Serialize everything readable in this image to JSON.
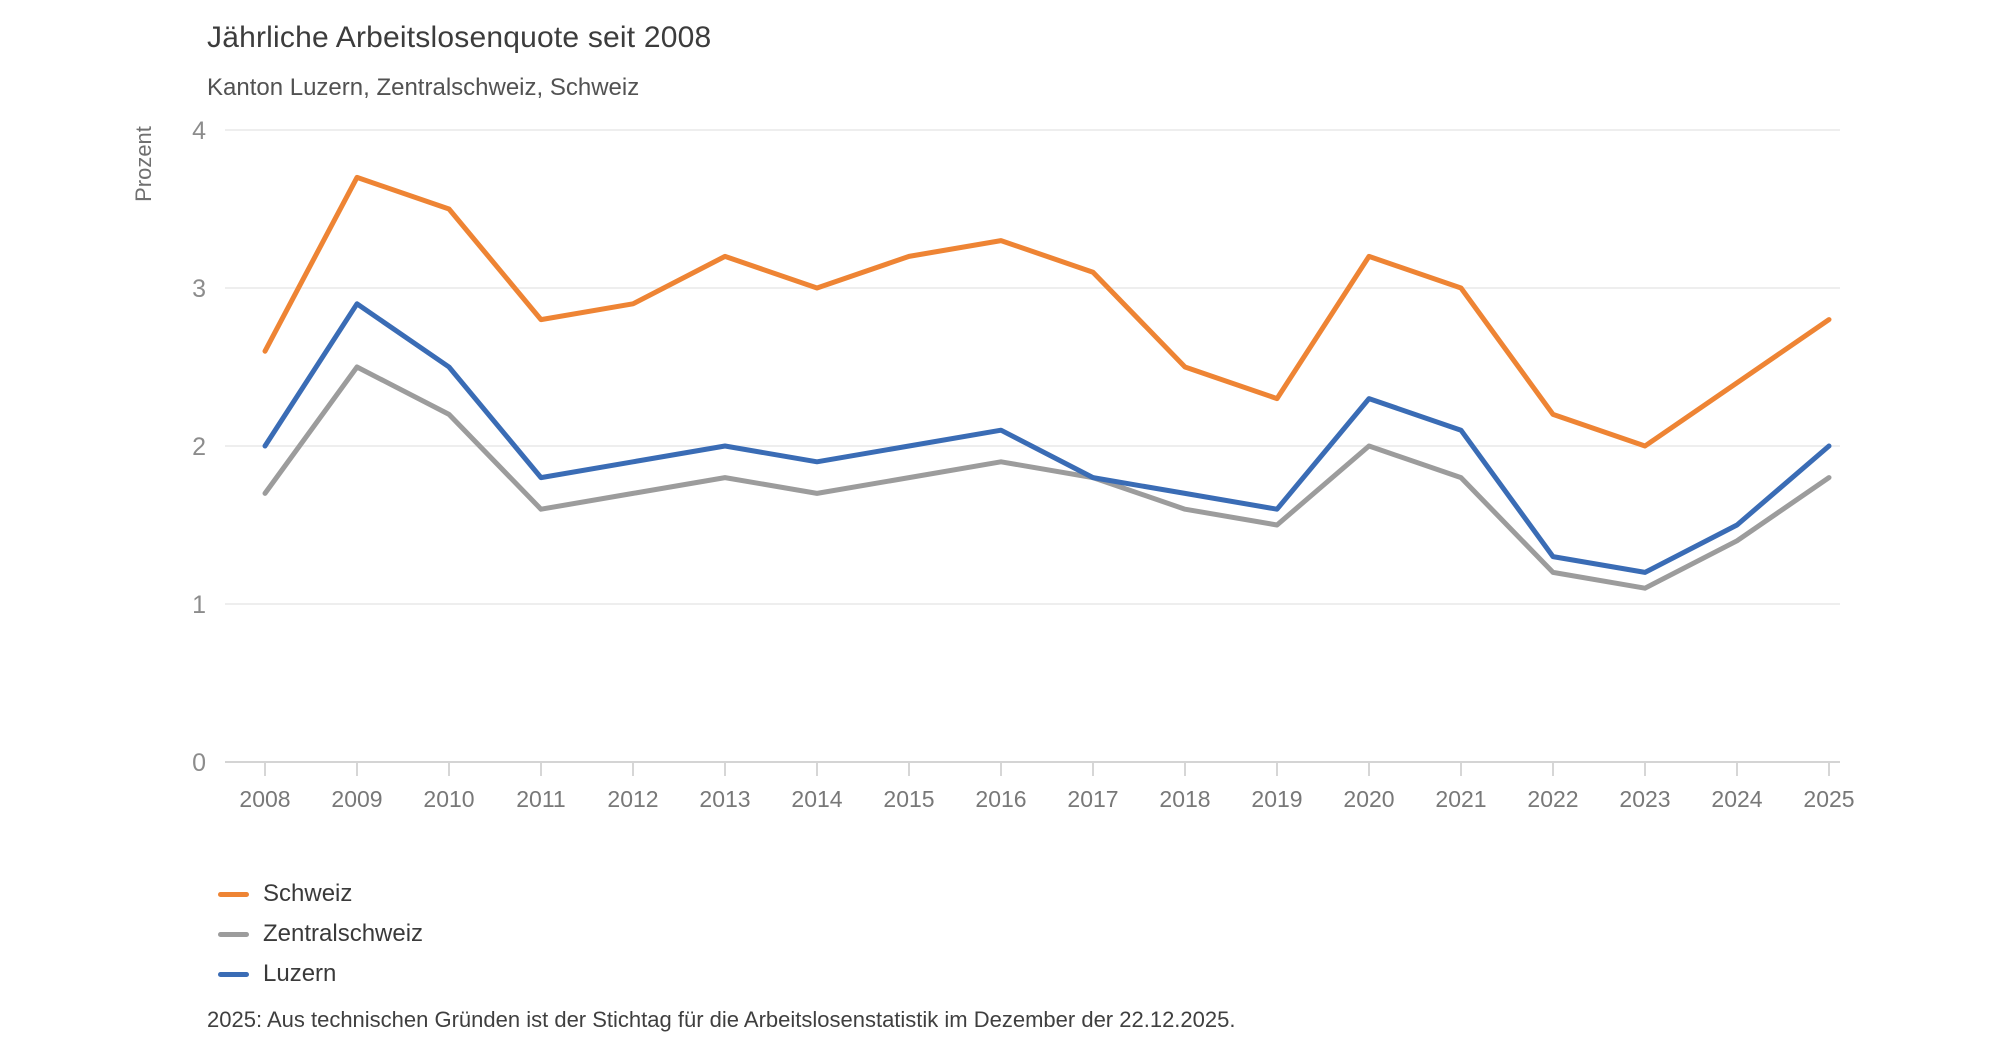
{
  "chart_data": {
    "type": "line",
    "title": "Jährliche Arbeitslosenquote seit 2008",
    "subtitle": "Kanton Luzern, Zentralschweiz, Schweiz",
    "ylabel": "Prozent",
    "ylim": [
      0,
      4
    ],
    "yticks": [
      0,
      1,
      2,
      3,
      4
    ],
    "grid": "horizontal",
    "legend_position": "bottom-left",
    "x": [
      2008,
      2009,
      2010,
      2011,
      2012,
      2013,
      2014,
      2015,
      2016,
      2017,
      2018,
      2019,
      2020,
      2021,
      2022,
      2023,
      2024,
      2025
    ],
    "series": [
      {
        "name": "Schweiz",
        "color": "#EE8434",
        "values": [
          2.6,
          3.7,
          3.5,
          2.8,
          2.9,
          3.2,
          3.0,
          3.2,
          3.3,
          3.1,
          2.5,
          2.3,
          3.2,
          3.0,
          2.2,
          2.0,
          2.4,
          2.8
        ]
      },
      {
        "name": "Zentralschweiz",
        "color": "#9C9C9C",
        "values": [
          1.7,
          2.5,
          2.2,
          1.6,
          1.7,
          1.8,
          1.7,
          1.8,
          1.9,
          1.8,
          1.6,
          1.5,
          2.0,
          1.8,
          1.2,
          1.1,
          1.4,
          1.8
        ]
      },
      {
        "name": "Luzern",
        "color": "#3A6CB5",
        "values": [
          2.0,
          2.9,
          2.5,
          1.8,
          1.9,
          2.0,
          1.9,
          2.0,
          2.1,
          1.8,
          1.7,
          1.6,
          2.3,
          2.1,
          1.3,
          1.2,
          1.5,
          2.0
        ]
      }
    ]
  },
  "footnote": "2025: Aus technischen Gründen ist der Stichtag für die Arbeitslosenstatistik im Dezember der 22.12.2025."
}
